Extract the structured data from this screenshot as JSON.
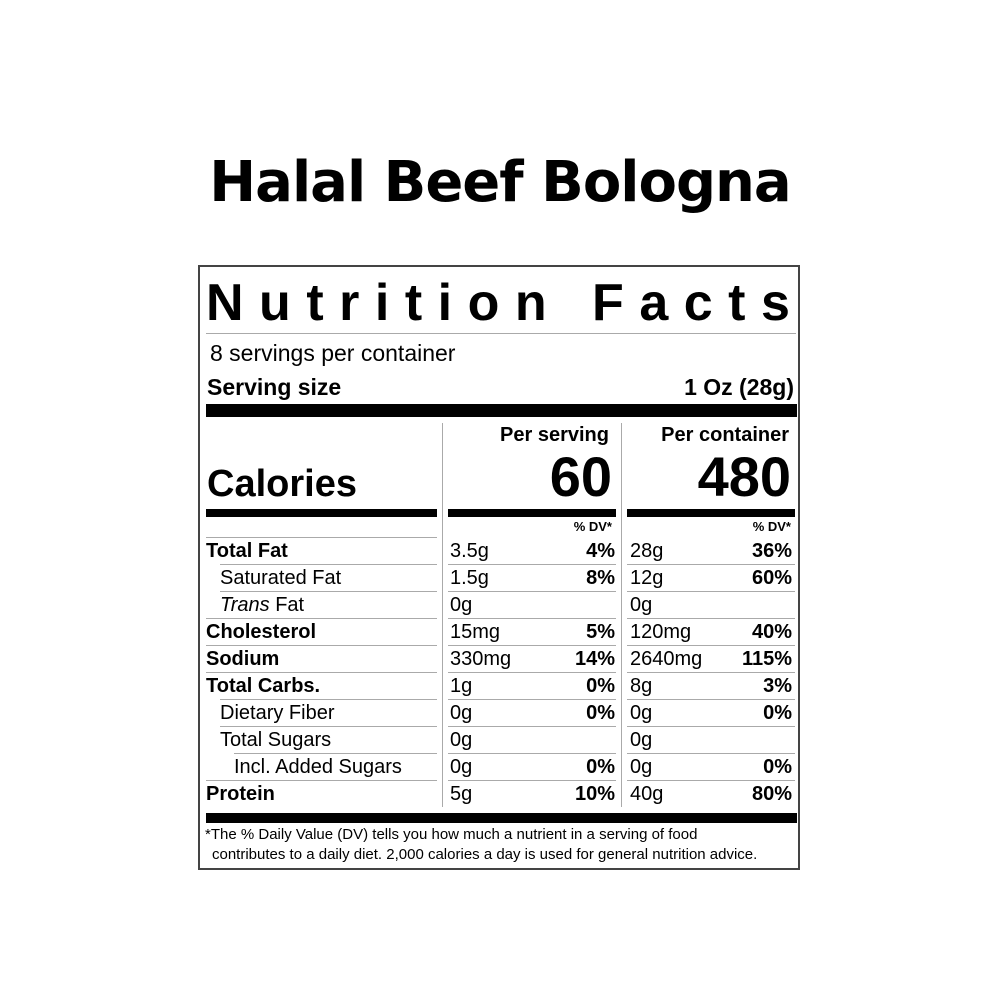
{
  "product_title": "Halal Beef Bologna",
  "label": {
    "heading": "Nutrition Facts",
    "servings_per_container": "8 servings per container",
    "serving_size_label": "Serving size",
    "serving_size_value": "1 Oz (28g)",
    "per_serving_label": "Per serving",
    "per_container_label": "Per container",
    "calories_label": "Calories",
    "calories_per_serving": "60",
    "calories_per_container": "480",
    "dv_header": "% DV*",
    "nutrients": [
      {
        "name": "Total Fat",
        "style": "bold",
        "serving_amount": "3.5g",
        "serving_dv": "4%",
        "container_amount": "28g",
        "container_dv": "36%"
      },
      {
        "name": "Saturated Fat",
        "style": "indent1",
        "serving_amount": "1.5g",
        "serving_dv": "8%",
        "container_amount": "12g",
        "container_dv": "60%"
      },
      {
        "name_italic": "Trans",
        "name": " Fat",
        "style": "indent1",
        "serving_amount": "0g",
        "serving_dv": "",
        "container_amount": "0g",
        "container_dv": ""
      },
      {
        "name": "Cholesterol",
        "style": "bold",
        "serving_amount": "15mg",
        "serving_dv": "5%",
        "container_amount": "120mg",
        "container_dv": "40%"
      },
      {
        "name": "Sodium",
        "style": "bold",
        "serving_amount": "330mg",
        "serving_dv": "14%",
        "container_amount": "2640mg",
        "container_dv": "115%"
      },
      {
        "name": "Total Carbs.",
        "style": "bold",
        "serving_amount": "1g",
        "serving_dv": "0%",
        "container_amount": "8g",
        "container_dv": "3%"
      },
      {
        "name": "Dietary Fiber",
        "style": "indent1",
        "serving_amount": "0g",
        "serving_dv": "0%",
        "container_amount": "0g",
        "container_dv": "0%"
      },
      {
        "name": "Total Sugars",
        "style": "indent1",
        "serving_amount": "0g",
        "serving_dv": "",
        "container_amount": "0g",
        "container_dv": ""
      },
      {
        "name": "Incl. Added Sugars",
        "style": "indent2",
        "serving_amount": "0g",
        "serving_dv": "0%",
        "container_amount": "0g",
        "container_dv": "0%"
      },
      {
        "name": "Protein",
        "style": "bold",
        "serving_amount": "5g",
        "serving_dv": "10%",
        "container_amount": "40g",
        "container_dv": "80%"
      }
    ],
    "footnote_line1": "*The % Daily Value (DV) tells you how much a nutrient in a serving of food",
    "footnote_line2": "contributes to a daily diet. 2,000 calories a day is used for general nutrition advice."
  }
}
